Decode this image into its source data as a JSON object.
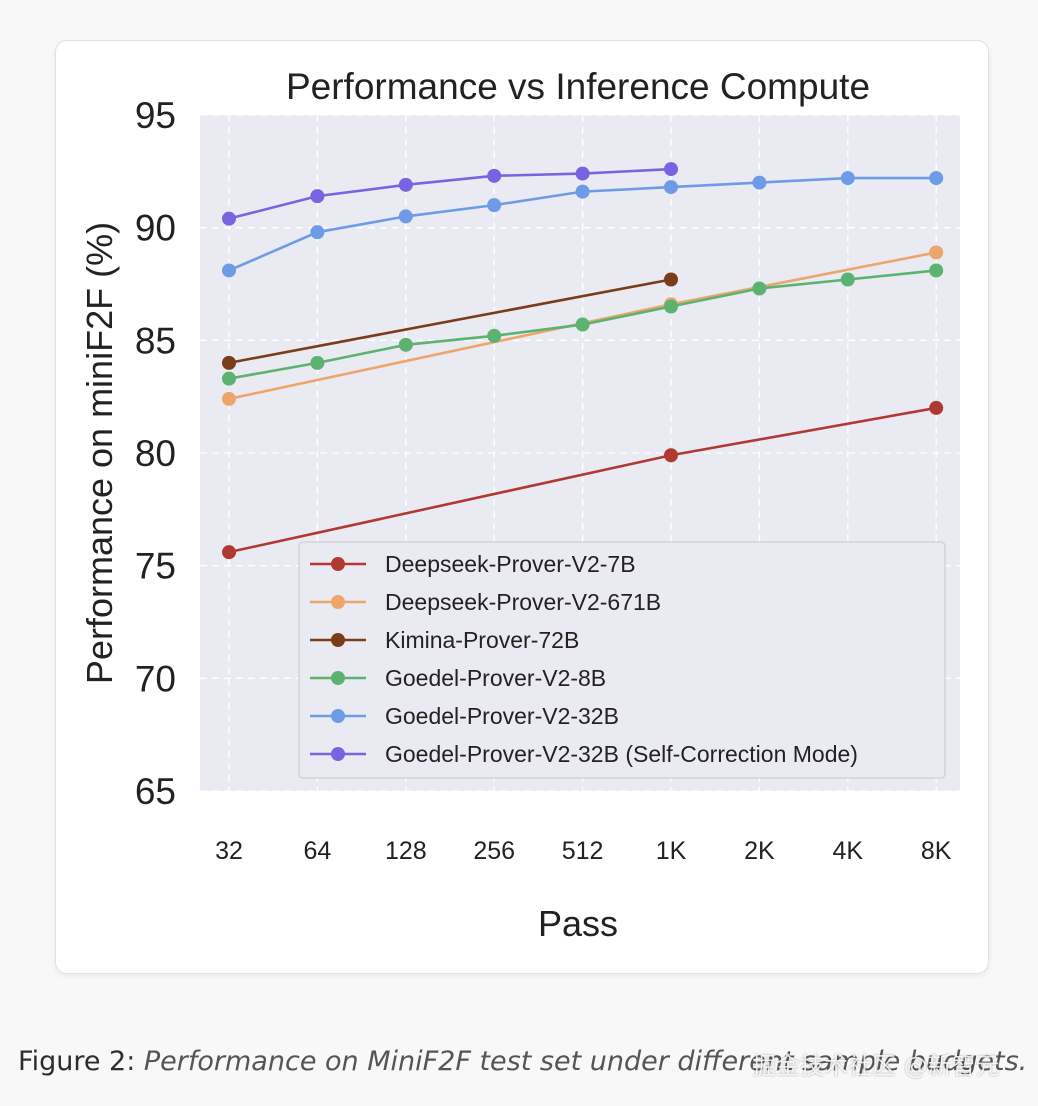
{
  "chart_data": {
    "type": "line",
    "title": "Performance vs Inference Compute",
    "xlabel": "Pass",
    "ylabel": "Performance on miniF2F (%)",
    "categories": [
      "32",
      "64",
      "128",
      "256",
      "512",
      "1K",
      "2K",
      "4K",
      "8K"
    ],
    "ylim": [
      65,
      95
    ],
    "yticks": [
      65,
      70,
      75,
      80,
      85,
      90,
      95
    ],
    "grid": true,
    "legend_position": "lower-right",
    "series": [
      {
        "name": "Deepseek-Prover-V2-7B",
        "color": "#b03a32",
        "points": [
          [
            0,
            75.6
          ],
          [
            5,
            79.9
          ],
          [
            8,
            82.0
          ]
        ]
      },
      {
        "name": "Deepseek-Prover-V2-671B",
        "color": "#eca66c",
        "points": [
          [
            0,
            82.4
          ],
          [
            5,
            86.6
          ],
          [
            8,
            88.9
          ]
        ]
      },
      {
        "name": "Kimina-Prover-72B",
        "color": "#7b3c19",
        "points": [
          [
            0,
            84.0
          ],
          [
            5,
            87.7
          ]
        ]
      },
      {
        "name": "Goedel-Prover-V2-8B",
        "color": "#5cb270",
        "points": [
          [
            0,
            83.3
          ],
          [
            1,
            84.0
          ],
          [
            2,
            84.8
          ],
          [
            3,
            85.2
          ],
          [
            4,
            85.7
          ],
          [
            5,
            86.5
          ],
          [
            6,
            87.3
          ],
          [
            7,
            87.7
          ],
          [
            8,
            88.1
          ]
        ]
      },
      {
        "name": "Goedel-Prover-V2-32B",
        "color": "#6e9be6",
        "points": [
          [
            0,
            88.1
          ],
          [
            1,
            89.8
          ],
          [
            2,
            90.5
          ],
          [
            3,
            91.0
          ],
          [
            4,
            91.6
          ],
          [
            5,
            91.8
          ],
          [
            6,
            92.0
          ],
          [
            7,
            92.2
          ],
          [
            8,
            92.2
          ]
        ]
      },
      {
        "name": "Goedel-Prover-V2-32B (Self-Correction Mode)",
        "color": "#7a63e0",
        "points": [
          [
            0,
            90.4
          ],
          [
            1,
            91.4
          ],
          [
            2,
            91.9
          ],
          [
            3,
            92.3
          ],
          [
            4,
            92.4
          ],
          [
            5,
            92.6
          ]
        ]
      }
    ]
  },
  "caption": {
    "label": "Figure 2",
    "text": "Performance on MiniF2F test set under different sample budgets."
  },
  "watermark": "掘金技术社区 @新智元"
}
